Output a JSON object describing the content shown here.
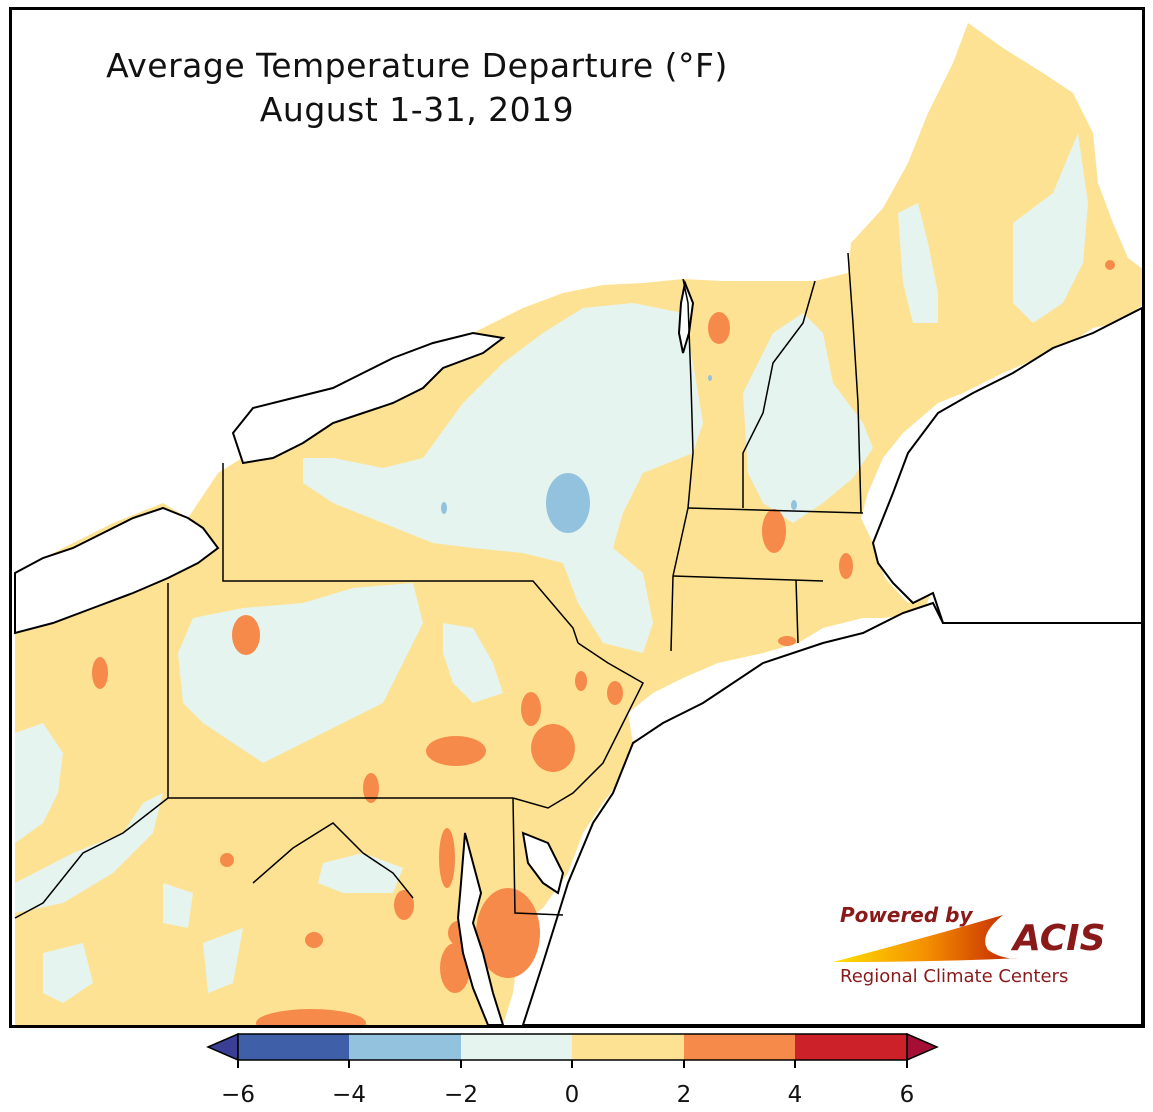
{
  "title": {
    "line1": "Average Temperature Departure (°F)",
    "line2": "August 1-31, 2019"
  },
  "logo": {
    "powered_by": "Powered by",
    "brand": "ACIS",
    "subtitle": "Regional Climate Centers"
  },
  "legend": {
    "bins": [
      {
        "min": -6,
        "max": -4,
        "color": "#3f5fa8"
      },
      {
        "min": -4,
        "max": -2,
        "color": "#92c2de"
      },
      {
        "min": -2,
        "max": 0,
        "color": "#e5f4ef"
      },
      {
        "min": 0,
        "max": 2,
        "color": "#fee293"
      },
      {
        "min": 2,
        "max": 4,
        "color": "#f68a4a"
      },
      {
        "min": 4,
        "max": 6,
        "color": "#cc2128"
      }
    ],
    "under_color": "#3a3f95",
    "over_color": "#a50f36",
    "ticks": [
      "−6",
      "−4",
      "−2",
      "0",
      "2",
      "4",
      "6"
    ]
  },
  "colors": {
    "near_normal_warm": "#fee293",
    "near_normal_cool": "#e5f4ef",
    "warm": "#f68a4a",
    "cool": "#92c2de",
    "water": "#ffffff",
    "border": "#000000",
    "county": "#b9b1a0"
  }
}
